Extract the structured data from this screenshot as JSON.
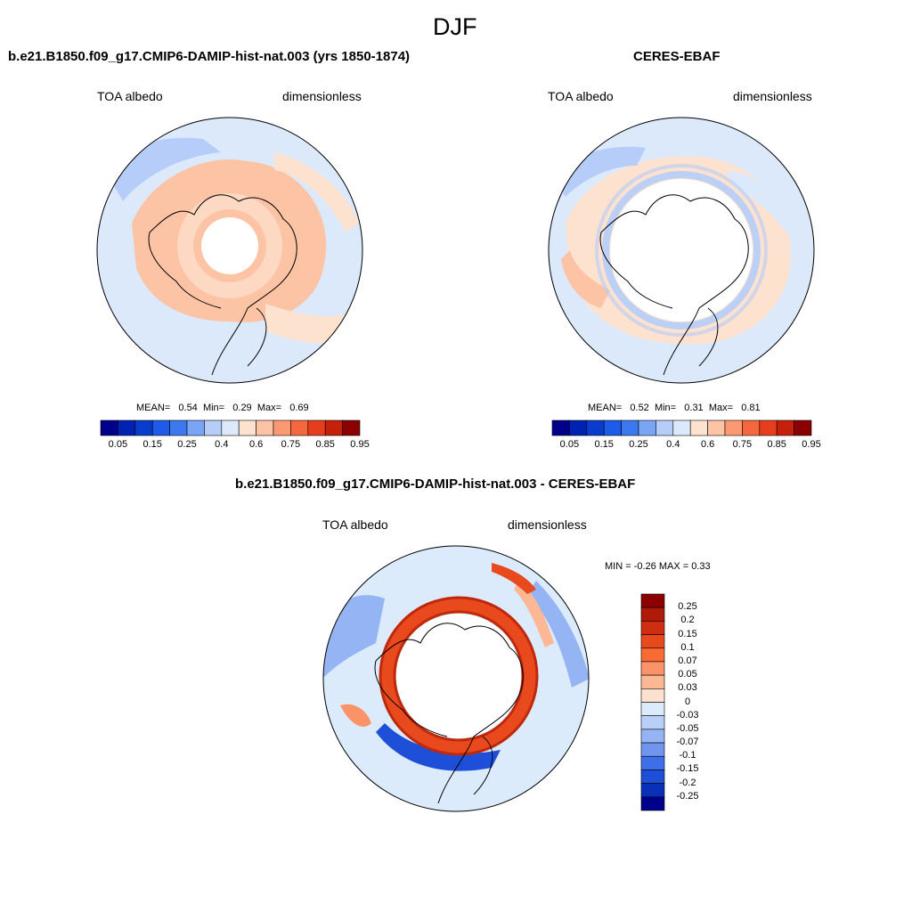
{
  "figure": {
    "title": "DJF"
  },
  "panels": [
    {
      "title": "b.e21.B1850.f09_g17.CMIP6-DAMIP-hist-nat.003 (yrs 1850-1874)",
      "left_label": "TOA albedo",
      "right_label": "dimensionless",
      "stats": {
        "mean_label": "MEAN=",
        "mean": "0.54",
        "min_label": "Min=",
        "min": "0.29",
        "max_label": "Max=",
        "max": "0.69"
      }
    },
    {
      "title": "CERES-EBAF",
      "left_label": "TOA albedo",
      "right_label": "dimensionless",
      "stats": {
        "mean_label": "MEAN=",
        "mean": "0.52",
        "min_label": "Min=",
        "min": "0.31",
        "max_label": "Max=",
        "max": "0.81"
      }
    },
    {
      "title": "b.e21.B1850.f09_g17.CMIP6-DAMIP-hist-nat.003 - CERES-EBAF",
      "left_label": "TOA albedo",
      "right_label": "dimensionless",
      "stats_text": "MIN =  -0.26 MAX =   0.33"
    }
  ],
  "chart_data": [
    {
      "type": "heatmap",
      "projection": "north-polar-stereographic",
      "title": "b.e21.B1850.f09_g17.CMIP6-DAMIP-hist-nat.003 (yrs 1850-1874)",
      "variable": "TOA albedo",
      "units": "dimensionless",
      "season": "DJF",
      "mean": 0.54,
      "min": 0.29,
      "max": 0.69,
      "colorbar": {
        "orientation": "horizontal",
        "levels": [
          0.05,
          0.1,
          0.15,
          0.2,
          0.25,
          0.3,
          0.4,
          0.5,
          0.6,
          0.7,
          0.75,
          0.8,
          0.85,
          0.9,
          0.95
        ],
        "tick_labels": [
          "0.05",
          "0.15",
          "0.25",
          "0.4",
          "0.6",
          "0.75",
          "0.85",
          "0.95"
        ],
        "colors": [
          "#00008b",
          "#0022b0",
          "#0a3ccc",
          "#1d5be8",
          "#3c78f0",
          "#7aa5f5",
          "#b5cdf8",
          "#dbe9fb",
          "#fde2d0",
          "#fcc3a4",
          "#fb9a72",
          "#f5683f",
          "#e63d1c",
          "#c4200c",
          "#8b0000"
        ]
      }
    },
    {
      "type": "heatmap",
      "projection": "north-polar-stereographic",
      "title": "CERES-EBAF",
      "variable": "TOA albedo",
      "units": "dimensionless",
      "season": "DJF",
      "mean": 0.52,
      "min": 0.31,
      "max": 0.81,
      "colorbar": {
        "orientation": "horizontal",
        "levels": [
          0.05,
          0.1,
          0.15,
          0.2,
          0.25,
          0.3,
          0.4,
          0.5,
          0.6,
          0.7,
          0.75,
          0.8,
          0.85,
          0.9,
          0.95
        ],
        "tick_labels": [
          "0.05",
          "0.15",
          "0.25",
          "0.4",
          "0.6",
          "0.75",
          "0.85",
          "0.95"
        ],
        "colors": [
          "#00008b",
          "#0022b0",
          "#0a3ccc",
          "#1d5be8",
          "#3c78f0",
          "#7aa5f5",
          "#b5cdf8",
          "#dbe9fb",
          "#fde2d0",
          "#fcc3a4",
          "#fb9a72",
          "#f5683f",
          "#e63d1c",
          "#c4200c",
          "#8b0000"
        ]
      }
    },
    {
      "type": "heatmap",
      "projection": "north-polar-stereographic",
      "title": "b.e21.B1850.f09_g17.CMIP6-DAMIP-hist-nat.003 - CERES-EBAF",
      "variable": "TOA albedo",
      "units": "dimensionless",
      "season": "DJF",
      "min": -0.26,
      "max": 0.33,
      "colorbar": {
        "orientation": "vertical",
        "tick_labels": [
          "0.25",
          "0.2",
          "0.15",
          "0.1",
          "0.07",
          "0.05",
          "0.03",
          "0",
          "-0.03",
          "-0.05",
          "-0.07",
          "-0.1",
          "-0.15",
          "-0.2",
          "-0.25"
        ],
        "colors": [
          "#8b0000",
          "#b01a08",
          "#d02e10",
          "#e84a1e",
          "#f86a34",
          "#fa9468",
          "#fcb894",
          "#fde0ce",
          "#dcebfb",
          "#b8cff8",
          "#94b4f4",
          "#6f95ef",
          "#3f6fe8",
          "#1e4fd8",
          "#0a30b8",
          "#00008b"
        ]
      }
    }
  ]
}
